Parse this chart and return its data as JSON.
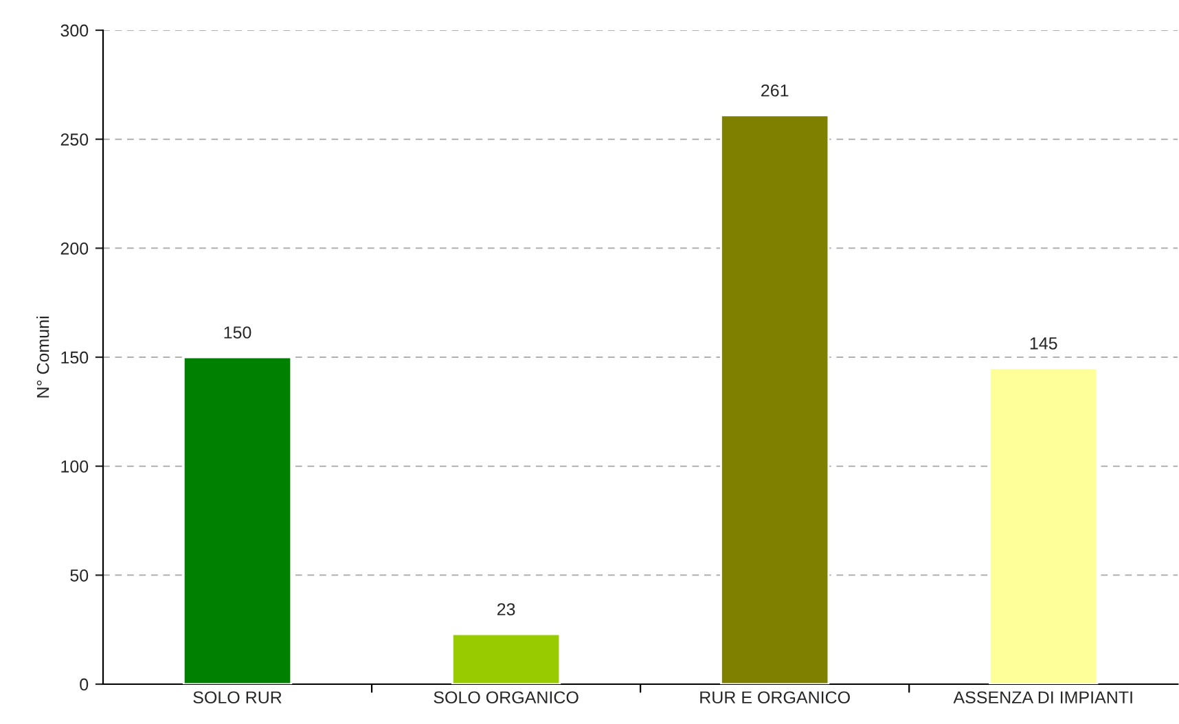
{
  "chart_data": {
    "type": "bar",
    "ylabel": "N° Comuni",
    "categories": [
      "SOLO RUR",
      "SOLO ORGANICO",
      "RUR E ORGANICO",
      "ASSENZA DI IMPIANTI"
    ],
    "values": [
      150,
      23,
      261,
      145
    ],
    "colors": [
      "#008000",
      "#99cc00",
      "#808000",
      "#ffff99"
    ],
    "ylim": [
      0,
      300
    ],
    "yticks": [
      0,
      50,
      100,
      150,
      200,
      250,
      300
    ],
    "grid": "y",
    "data_labels": true
  }
}
